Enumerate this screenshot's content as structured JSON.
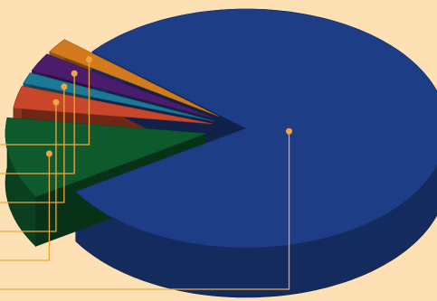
{
  "chart_data": {
    "type": "pie3d",
    "values": [
      80,
      11,
      3,
      1.5,
      2.5,
      2
    ],
    "colors": [
      "#1d3d86",
      "#0f5a2c",
      "#c8472a",
      "#1b7896",
      "#4b1c6b",
      "#d27a1c"
    ]
  }
}
